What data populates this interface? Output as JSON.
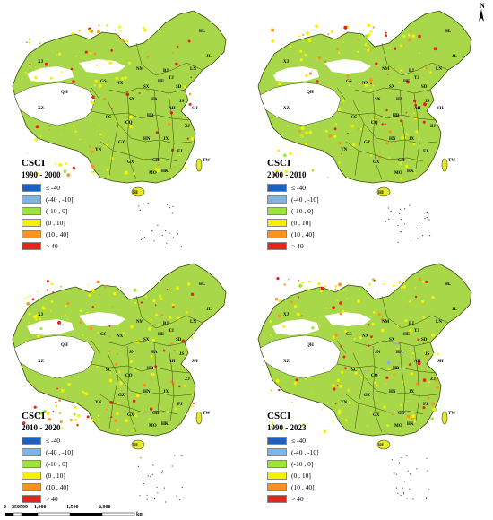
{
  "north_arrow": {
    "label": "N"
  },
  "legend_title": "CSCI",
  "legend_colors": [
    "#1f5fbf",
    "#7fb4ea",
    "#9be53a",
    "#f5f200",
    "#f7931e",
    "#e8231c"
  ],
  "legend_items": [
    "≤ -40",
    "(-40 , -10]",
    "(-10 , 0]",
    "(0 , 10]",
    "(10 , 40]",
    "> 40"
  ],
  "panels": [
    {
      "period": "1990 - 2000"
    },
    {
      "period": "2000 - 2010"
    },
    {
      "period": "2010 - 2020"
    },
    {
      "period": "1990 - 2023"
    }
  ],
  "province_labels": [
    "XJ",
    "XZ",
    "QH",
    "GS",
    "NM",
    "HL",
    "JL",
    "LN",
    "BJ",
    "TJ",
    "HE",
    "SX",
    "SN",
    "NX",
    "SD",
    "HA",
    "JS",
    "AH",
    "SH",
    "HB",
    "SC",
    "CQ",
    "GZ",
    "YN",
    "HN",
    "JX",
    "ZJ",
    "FJ",
    "GD",
    "GX",
    "HI",
    "TW",
    "HK",
    "MO"
  ],
  "scale_bar": {
    "ticks": [
      "0",
      "250",
      "500",
      "1,000",
      "1,500",
      "2,000"
    ],
    "unit": "km"
  }
}
